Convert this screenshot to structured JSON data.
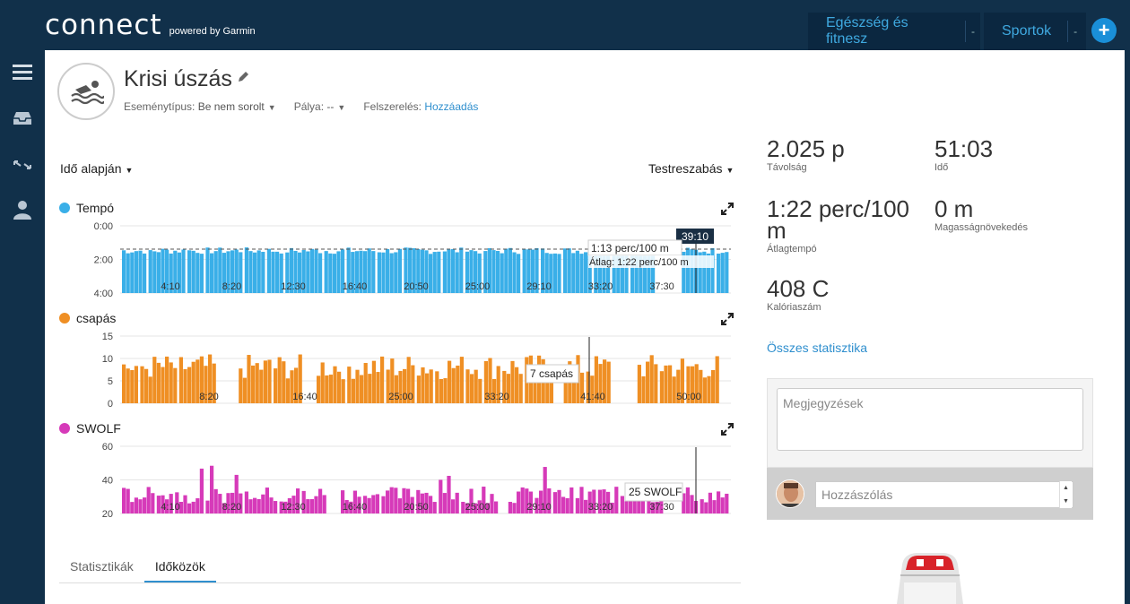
{
  "app": {
    "logo_word": "connect",
    "logo_sub": "powered by Garmin"
  },
  "topnav": {
    "tabs": [
      {
        "label": "Egészség és fitnesz",
        "dash": "-"
      },
      {
        "label": "Sportok",
        "dash": "-"
      }
    ],
    "plus": "+"
  },
  "activity": {
    "title": "Krisi úszás",
    "event_type_label": "Eseménytípus:",
    "event_type_value": "Be nem sorolt",
    "pool_label": "Pálya:",
    "pool_value": "--",
    "gear_label": "Felszerelés:",
    "gear_link": "Hozzáadás"
  },
  "controls": {
    "time_based": "Idő alapján",
    "customize": "Testreszabás"
  },
  "charts": [
    {
      "name": "Tempó",
      "color": "#3aafe8",
      "y_ticks": [
        "0:00",
        "2:00",
        "4:00"
      ],
      "x_ticks": [
        "4:10",
        "8:20",
        "12:30",
        "16:40",
        "20:50",
        "25:00",
        "29:10",
        "33:20",
        "37:30"
      ],
      "tooltip": "1:13 perc/100 m",
      "avg_label": "Átlag: 1:22 perc/100 m",
      "cursor_time": "39:10"
    },
    {
      "name": "csapás",
      "color": "#ef8f24",
      "y_ticks": [
        "15",
        "10",
        "5",
        "0"
      ],
      "x_ticks": [
        "8:20",
        "16:40",
        "25:00",
        "33:20",
        "41:40",
        "50:00"
      ],
      "tooltip": "7 csapás"
    },
    {
      "name": "SWOLF",
      "color": "#d63ab9",
      "y_ticks": [
        "60",
        "40",
        "20"
      ],
      "x_ticks": [
        "4:10",
        "8:20",
        "12:30",
        "16:40",
        "20:50",
        "25:00",
        "29:10",
        "33:20",
        "37:30"
      ],
      "tooltip": "25 SWOLF"
    }
  ],
  "tabs": [
    "Statisztikák",
    "Időközök"
  ],
  "stats": [
    {
      "value": "2.025 p",
      "label": "Távolság"
    },
    {
      "value": "51:03",
      "label": "Idő"
    },
    {
      "value": "1:22 perc/100 m",
      "label": "Átlagtempó"
    },
    {
      "value": "0 m",
      "label": "Magasságnövekedés"
    },
    {
      "value": "408 C",
      "label": "Kalóriaszám"
    }
  ],
  "all_stats_link": "Összes statisztika",
  "notes_placeholder": "Megjegyzések",
  "comment_placeholder": "Hozzászólás"
}
